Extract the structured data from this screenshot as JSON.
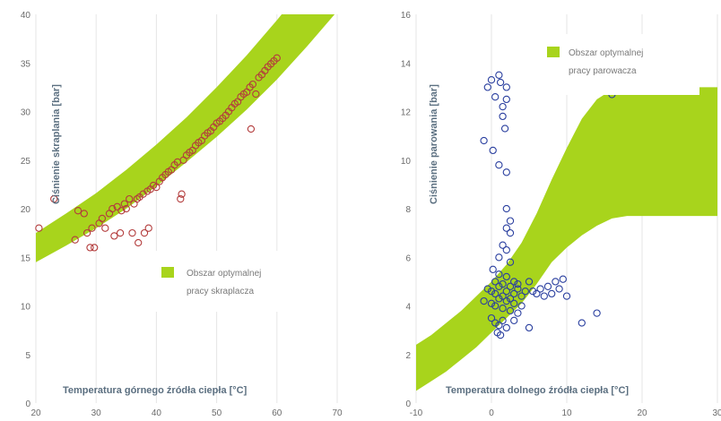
{
  "charts": [
    {
      "ylabel": "Ciśnienie skraplania [bar]",
      "xlabel": "Temperatura górnego źródła ciepła [°C]",
      "legend": [
        "Obszar optymalnej",
        "pracy skraplacza"
      ]
    },
    {
      "ylabel": "Ciśnienie parowania [bar]",
      "xlabel": "Temperatura dolnego źródła ciepła [°C]",
      "legend": [
        "Obszar optymalnej",
        "pracy parowacza"
      ]
    }
  ],
  "chart_data": [
    {
      "type": "scatter",
      "xlabel": "Temperatura górnego źródła ciepła [°C]",
      "ylabel": "Ciśnienie skraplania [bar]",
      "xlim": [
        20,
        70
      ],
      "ylim": [
        0,
        40
      ],
      "yticks": [
        0,
        5,
        10,
        15,
        20,
        25,
        30,
        35,
        40
      ],
      "xticks": [
        20,
        30,
        40,
        50,
        60,
        70
      ],
      "grid": "vertical",
      "legend_position": "bottom-right",
      "band": {
        "name": "Obszar optymalnej pracy skraplacza",
        "color": "#a8d41c",
        "x": [
          20,
          25,
          30,
          35,
          40,
          45,
          50,
          55,
          60,
          65,
          70
        ],
        "lower": [
          14.5,
          16.2,
          18.0,
          20.0,
          22.3,
          24.8,
          27.4,
          30.2,
          33.3,
          36.7,
          40.3
        ],
        "upper": [
          17.5,
          19.5,
          21.6,
          24.0,
          26.6,
          29.4,
          32.5,
          35.8,
          39.4,
          43.2,
          47.2
        ]
      },
      "series": [
        {
          "color": "#b33c3c",
          "points": [
            [
              20.5,
              18
            ],
            [
              23,
              21
            ],
            [
              26.5,
              16.8
            ],
            [
              27,
              19.8
            ],
            [
              28,
              19.5
            ],
            [
              28.5,
              17.5
            ],
            [
              29,
              16
            ],
            [
              29.3,
              18
            ],
            [
              29.7,
              16
            ],
            [
              30.5,
              18.5
            ],
            [
              31,
              19
            ],
            [
              31.5,
              18
            ],
            [
              32.2,
              19.5
            ],
            [
              32.7,
              20
            ],
            [
              33,
              17.2
            ],
            [
              33.5,
              20.2
            ],
            [
              34,
              17.5
            ],
            [
              34.2,
              19.8
            ],
            [
              34.7,
              20.5
            ],
            [
              35,
              20
            ],
            [
              35.5,
              21
            ],
            [
              36,
              17.5
            ],
            [
              36.3,
              20.5
            ],
            [
              36.8,
              21
            ],
            [
              37,
              16.5
            ],
            [
              37.2,
              21.2
            ],
            [
              37.8,
              21.5
            ],
            [
              38,
              17.5
            ],
            [
              38.5,
              21.8
            ],
            [
              38.7,
              18
            ],
            [
              39,
              22
            ],
            [
              39.5,
              22.4
            ],
            [
              40,
              22.2
            ],
            [
              40.5,
              22.8
            ],
            [
              41,
              23.2
            ],
            [
              41.5,
              23.5
            ],
            [
              42,
              23.8
            ],
            [
              42.5,
              24
            ],
            [
              43,
              24.5
            ],
            [
              43.5,
              24.8
            ],
            [
              44,
              21
            ],
            [
              44.2,
              21.5
            ],
            [
              44.5,
              25
            ],
            [
              45,
              25.5
            ],
            [
              45.5,
              25.8
            ],
            [
              46,
              26
            ],
            [
              46.5,
              26.5
            ],
            [
              47,
              26.8
            ],
            [
              47.5,
              27
            ],
            [
              48,
              27.5
            ],
            [
              48.5,
              27.8
            ],
            [
              49,
              28
            ],
            [
              49.5,
              28.4
            ],
            [
              50,
              28.8
            ],
            [
              50.5,
              29
            ],
            [
              51,
              29.3
            ],
            [
              51.5,
              29.6
            ],
            [
              52,
              30
            ],
            [
              52.5,
              30.4
            ],
            [
              53,
              30.8
            ],
            [
              53.5,
              31
            ],
            [
              54,
              31.5
            ],
            [
              54.5,
              31.8
            ],
            [
              55,
              32
            ],
            [
              55.5,
              32.5
            ],
            [
              55.7,
              28.2
            ],
            [
              56,
              32.8
            ],
            [
              56.5,
              31.8
            ],
            [
              57,
              33.5
            ],
            [
              57.5,
              33.8
            ],
            [
              58,
              34.2
            ],
            [
              58.5,
              34.6
            ],
            [
              59,
              34.9
            ],
            [
              59.5,
              35.2
            ],
            [
              60,
              35.5
            ]
          ]
        }
      ]
    },
    {
      "type": "scatter",
      "xlabel": "Temperatura dolnego źródła ciepła [°C]",
      "ylabel": "Ciśnienie parowania [bar]",
      "xlim": [
        -10,
        30
      ],
      "ylim": [
        0,
        16
      ],
      "yticks": [
        0,
        2,
        4,
        6,
        8,
        10,
        12,
        14,
        16
      ],
      "xticks": [
        -10,
        0,
        10,
        20,
        30
      ],
      "grid": "vertical",
      "legend_position": "top-right",
      "band": {
        "name": "Obszar optymalnej pracy parowacza",
        "color": "#a8d41c",
        "x": [
          -10,
          -8,
          -6,
          -4,
          -2,
          0,
          2,
          4,
          6,
          8,
          10,
          12,
          14,
          16,
          18,
          20,
          22,
          24,
          26,
          28,
          30
        ],
        "lower": [
          0.5,
          0.9,
          1.3,
          1.8,
          2.3,
          2.9,
          3.5,
          4.1,
          4.9,
          5.8,
          6.4,
          6.9,
          7.3,
          7.6,
          7.7,
          7.7,
          7.7,
          7.7,
          7.7,
          7.7,
          7.7
        ],
        "upper": [
          2.4,
          2.8,
          3.3,
          3.8,
          4.4,
          5.0,
          5.7,
          6.6,
          7.8,
          9.2,
          10.5,
          11.7,
          12.5,
          12.9,
          13.0,
          13.0,
          13.0,
          13.0,
          13.0,
          13.0,
          13.0
        ]
      },
      "series": [
        {
          "color": "#2a3f9f",
          "points": [
            [
              -0.5,
              13
            ],
            [
              0,
              13.3
            ],
            [
              0.5,
              12.6
            ],
            [
              1,
              13.5
            ],
            [
              1.2,
              13.2
            ],
            [
              1.5,
              12.2
            ],
            [
              2,
              12.5
            ],
            [
              1.5,
              11.8
            ],
            [
              1.8,
              11.3
            ],
            [
              2,
              13
            ],
            [
              -1,
              10.8
            ],
            [
              0.2,
              10.4
            ],
            [
              1,
              9.8
            ],
            [
              2,
              9.5
            ],
            [
              2,
              8
            ],
            [
              2.5,
              7.5
            ],
            [
              2,
              7.2
            ],
            [
              2.5,
              7
            ],
            [
              1.5,
              6.5
            ],
            [
              2,
              6.3
            ],
            [
              1,
              6
            ],
            [
              2.5,
              5.8
            ],
            [
              0.2,
              5.5
            ],
            [
              1,
              5.3
            ],
            [
              2,
              5.2
            ],
            [
              3,
              5
            ],
            [
              0.5,
              5
            ],
            [
              1.5,
              4.9
            ],
            [
              2.5,
              4.8
            ],
            [
              3.5,
              4.7
            ],
            [
              -0.5,
              4.7
            ],
            [
              0,
              4.6
            ],
            [
              0.5,
              4.5
            ],
            [
              1,
              4.8
            ],
            [
              1.5,
              4.4
            ],
            [
              2,
              4.6
            ],
            [
              2.5,
              4.3
            ],
            [
              3,
              4.5
            ],
            [
              3.5,
              4.9
            ],
            [
              4,
              4.4
            ],
            [
              4.5,
              4.6
            ],
            [
              5,
              5
            ],
            [
              5.5,
              4.6
            ],
            [
              6,
              4.5
            ],
            [
              6.5,
              4.7
            ],
            [
              7,
              4.4
            ],
            [
              7.5,
              4.8
            ],
            [
              8,
              4.5
            ],
            [
              8.5,
              5
            ],
            [
              9,
              4.7
            ],
            [
              9.5,
              5.1
            ],
            [
              10,
              4.4
            ],
            [
              -1,
              4.2
            ],
            [
              0,
              4.1
            ],
            [
              0.5,
              4
            ],
            [
              1,
              4.3
            ],
            [
              1.5,
              3.9
            ],
            [
              2,
              4.2
            ],
            [
              2.5,
              3.8
            ],
            [
              3,
              4.1
            ],
            [
              3.5,
              3.7
            ],
            [
              4,
              4
            ],
            [
              0,
              3.5
            ],
            [
              0.5,
              3.3
            ],
            [
              1,
              3.2
            ],
            [
              1.5,
              3.4
            ],
            [
              2,
              3.1
            ],
            [
              3,
              3.4
            ],
            [
              5,
              3.1
            ],
            [
              0.8,
              2.9
            ],
            [
              1.2,
              2.8
            ],
            [
              12,
              3.3
            ],
            [
              14,
              3.7
            ],
            [
              16,
              12.7
            ]
          ]
        }
      ]
    }
  ]
}
